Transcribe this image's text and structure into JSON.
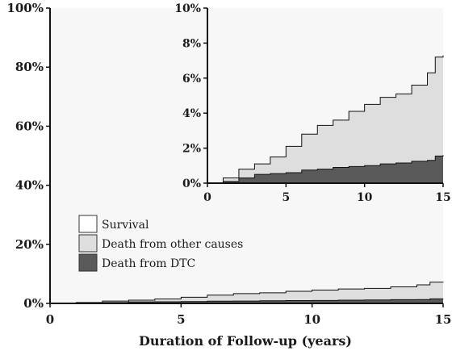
{
  "chart_data": [
    {
      "type": "area",
      "stacked": true,
      "xlabel": "Duration of Follow-up (years)",
      "ylabel": "",
      "xlim": [
        0,
        15
      ],
      "ylim": [
        0,
        100
      ],
      "x_ticks": [
        "0",
        "5",
        "10",
        "15"
      ],
      "y_ticks": [
        "0%",
        "20%",
        "40%",
        "60%",
        "80%",
        "100%"
      ],
      "legend": {
        "placement": "center-left",
        "entries": [
          {
            "label": "Survival",
            "color": "#ffffff"
          },
          {
            "label": "Death from other causes",
            "color": "#dedede"
          },
          {
            "label": "Death from DTC",
            "color": "#5a5a5a"
          }
        ]
      },
      "x": [
        0,
        1,
        2,
        3,
        4,
        5,
        6,
        7,
        8,
        9,
        10,
        11,
        12,
        13,
        14,
        14.5,
        15
      ],
      "series": [
        {
          "name": "Death from DTC",
          "values": [
            0,
            0.1,
            0.3,
            0.5,
            0.55,
            0.6,
            0.75,
            0.8,
            0.9,
            0.95,
            1.0,
            1.1,
            1.15,
            1.25,
            1.3,
            1.55,
            1.6
          ]
        },
        {
          "name": "Death from other causes",
          "values": [
            0,
            0.2,
            0.5,
            0.6,
            0.95,
            1.5,
            2.05,
            2.5,
            2.7,
            3.15,
            3.5,
            3.8,
            3.95,
            4.35,
            5.0,
            5.65,
            5.7
          ]
        }
      ],
      "grid": false
    },
    {
      "type": "area",
      "stacked": true,
      "note": "inset",
      "xlim": [
        0,
        15
      ],
      "ylim": [
        0,
        10
      ],
      "x_ticks": [
        "0",
        "5",
        "10",
        "15"
      ],
      "y_ticks": [
        "0%",
        "2%",
        "4%",
        "6%",
        "8%",
        "10%"
      ],
      "x": [
        0,
        1,
        2,
        3,
        4,
        5,
        6,
        7,
        8,
        9,
        10,
        11,
        12,
        13,
        14,
        14.5,
        15
      ],
      "series": [
        {
          "name": "Death from DTC",
          "values": [
            0,
            0.1,
            0.3,
            0.5,
            0.55,
            0.6,
            0.75,
            0.8,
            0.9,
            0.95,
            1.0,
            1.1,
            1.15,
            1.25,
            1.3,
            1.55,
            1.6
          ]
        },
        {
          "name": "Death from other causes",
          "values": [
            0,
            0.2,
            0.5,
            0.6,
            0.95,
            1.5,
            2.05,
            2.5,
            2.7,
            3.15,
            3.5,
            3.8,
            3.95,
            4.35,
            5.0,
            5.65,
            5.7
          ]
        }
      ],
      "grid": false
    }
  ],
  "colors": {
    "survival": "#ffffff",
    "other": "#dedede",
    "dtc": "#5a5a5a",
    "plot_bg": "#f7f7f7"
  }
}
